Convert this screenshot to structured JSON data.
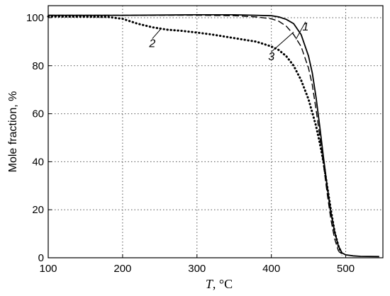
{
  "chart_data": {
    "type": "line",
    "title": "",
    "xlabel_symbol": "T",
    "xlabel_unit": ", °C",
    "ylabel": "Mole fraction, %",
    "xlim": [
      100,
      550
    ],
    "ylim": [
      0,
      105
    ],
    "xticks": [
      100,
      200,
      300,
      400,
      500
    ],
    "yticks": [
      0,
      20,
      40,
      60,
      80,
      100
    ],
    "grid": true,
    "legend": "none",
    "series": [
      {
        "name": "1",
        "style": "solid",
        "x": [
          100,
          200,
          300,
          350,
          380,
          400,
          410,
          420,
          430,
          440,
          450,
          455,
          460,
          465,
          470,
          475,
          480,
          485,
          490,
          495,
          500,
          510,
          520,
          545
        ],
        "y": [
          101,
          101,
          101.2,
          101.2,
          101,
          100.8,
          100.3,
          99.3,
          97.5,
          93,
          84,
          77,
          67,
          55,
          42,
          30,
          19,
          11,
          5,
          2,
          1.2,
          0.8,
          0.6,
          0.5
        ]
      },
      {
        "name": "3",
        "style": "dashed",
        "x": [
          100,
          200,
          300,
          350,
          380,
          400,
          410,
          420,
          430,
          440,
          450,
          455,
          460,
          465,
          470,
          475,
          480,
          485,
          490,
          495
        ],
        "y": [
          101,
          101,
          101,
          100.8,
          100.3,
          99.5,
          98.5,
          96.5,
          93,
          88,
          79,
          72,
          62,
          51,
          39,
          27,
          16,
          8,
          3,
          1
        ]
      },
      {
        "name": "2",
        "style": "dotted",
        "x": [
          100,
          180,
          200,
          220,
          240,
          260,
          280,
          300,
          320,
          340,
          360,
          380,
          400,
          410,
          420,
          430,
          440,
          450,
          460,
          465,
          470,
          475,
          480,
          485,
          490,
          495
        ],
        "y": [
          100.5,
          100.3,
          99.5,
          97.5,
          96,
          95,
          94.5,
          93.8,
          93,
          92,
          91,
          90,
          88,
          86.5,
          84,
          80,
          74,
          66,
          55,
          48,
          40,
          30,
          20,
          11,
          5,
          1.5
        ]
      }
    ],
    "annotations": [
      {
        "text": "1",
        "x": 446,
        "y": 96.5,
        "to_x": 433,
        "to_y": 91
      },
      {
        "text": "2",
        "x": 240,
        "y": 89.5,
        "to_x": 252,
        "to_y": 95.5
      },
      {
        "text": "3",
        "x": 400,
        "y": 84,
        "to_x": 430,
        "to_y": 94
      }
    ]
  }
}
